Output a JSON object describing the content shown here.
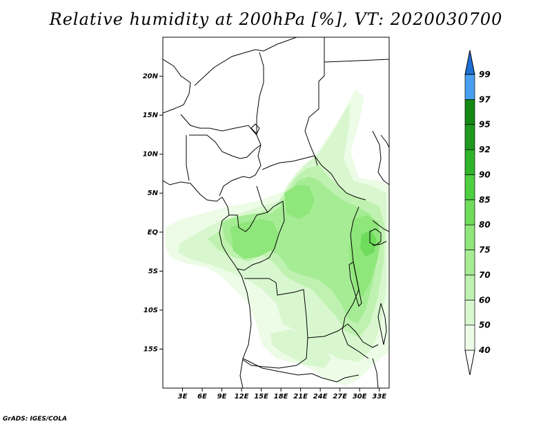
{
  "title": "Relative humidity at 200hPa [%], VT: 2020030700",
  "credit": "GrADS: IGES/COLA",
  "map": {
    "type": "filled-contour-map",
    "variable": "Relative humidity",
    "level": "200hPa",
    "units": "%",
    "valid_time": "2020030700",
    "lon_range": [
      0,
      34.5
    ],
    "lat_range": [
      -20,
      25
    ],
    "lat_ticks": [
      {
        "lat": 20,
        "label": "20N"
      },
      {
        "lat": 15,
        "label": "15N"
      },
      {
        "lat": 10,
        "label": "10N"
      },
      {
        "lat": 5,
        "label": "5N"
      },
      {
        "lat": 0,
        "label": "EQ"
      },
      {
        "lat": -5,
        "label": "5S"
      },
      {
        "lat": -10,
        "label": "10S"
      },
      {
        "lat": -15,
        "label": "15S"
      }
    ],
    "lon_ticks": [
      {
        "lon": 3,
        "label": "3E"
      },
      {
        "lon": 6,
        "label": "6E"
      },
      {
        "lon": 9,
        "label": "9E"
      },
      {
        "lon": 12,
        "label": "12E"
      },
      {
        "lon": 15,
        "label": "15E"
      },
      {
        "lon": 18,
        "label": "18E"
      },
      {
        "lon": 21,
        "label": "21E"
      },
      {
        "lon": 24,
        "label": "24E"
      },
      {
        "lon": 27,
        "label": "27E"
      },
      {
        "lon": 30,
        "label": "30E"
      },
      {
        "lon": 33,
        "label": "33E"
      }
    ]
  },
  "colorbar": {
    "levels": [
      {
        "label": "40",
        "color": "#ecfce6"
      },
      {
        "label": "50",
        "color": "#d9f7cf"
      },
      {
        "label": "60",
        "color": "#bff2b0"
      },
      {
        "label": "70",
        "color": "#a6ec95"
      },
      {
        "label": "75",
        "color": "#8fe67a"
      },
      {
        "label": "80",
        "color": "#6fdc5c"
      },
      {
        "label": "85",
        "color": "#4dcf40"
      },
      {
        "label": "90",
        "color": "#2fb42a"
      },
      {
        "label": "92",
        "color": "#1f9a1f"
      },
      {
        "label": "95",
        "color": "#148a14"
      },
      {
        "label": "97",
        "color": "#4aa0f0"
      },
      {
        "label": "99",
        "color": "#2d7fe0"
      }
    ],
    "top_color": "#1f6fd4",
    "bottom_color": "#ffffff"
  }
}
